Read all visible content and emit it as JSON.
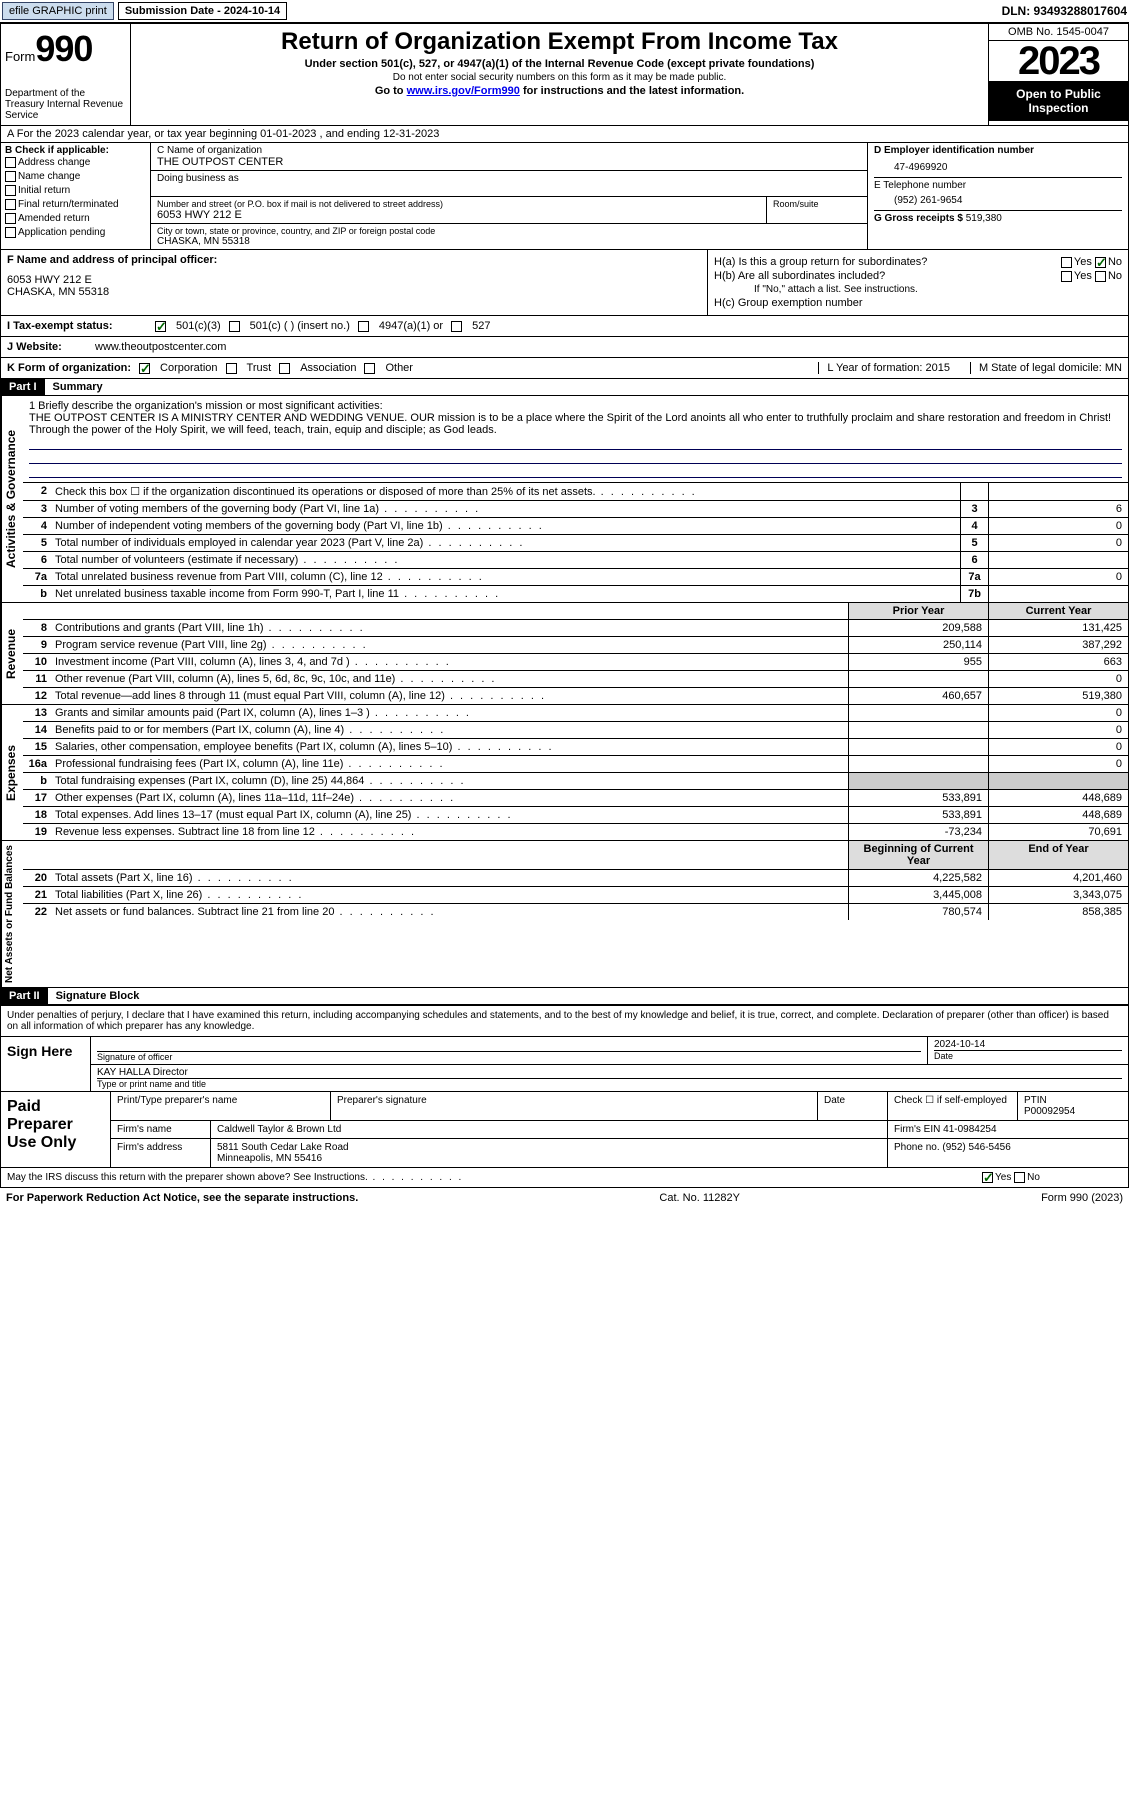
{
  "topbar": {
    "efile": "efile GRAPHIC print",
    "subdate_lbl": "Submission Date - 2024-10-14",
    "dln": "DLN: 93493288017604"
  },
  "header": {
    "form": "Form",
    "num": "990",
    "dept": "Department of the Treasury Internal Revenue Service",
    "title": "Return of Organization Exempt From Income Tax",
    "sub1": "Under section 501(c), 527, or 4947(a)(1) of the Internal Revenue Code (except private foundations)",
    "sub2": "Do not enter social security numbers on this form as it may be made public.",
    "sub3_pre": "Go to ",
    "sub3_link": "www.irs.gov/Form990",
    "sub3_post": " for instructions and the latest information.",
    "omb": "OMB No. 1545-0047",
    "year": "2023",
    "opi": "Open to Public Inspection"
  },
  "row_a": "A For the 2023 calendar year, or tax year beginning 01-01-2023   , and ending 12-31-2023",
  "box_b": {
    "hdr": "B Check if applicable:",
    "items": [
      "Address change",
      "Name change",
      "Initial return",
      "Final return/terminated",
      "Amended return",
      "Application pending"
    ]
  },
  "box_c": {
    "name_lbl": "C Name of organization",
    "name": "THE OUTPOST CENTER",
    "dba_lbl": "Doing business as",
    "addr_lbl": "Number and street (or P.O. box if mail is not delivered to street address)",
    "room_lbl": "Room/suite",
    "addr": "6053 HWY 212 E",
    "city_lbl": "City or town, state or province, country, and ZIP or foreign postal code",
    "city": "CHASKA, MN  55318"
  },
  "box_d": {
    "ein_lbl": "D Employer identification number",
    "ein": "47-4969920",
    "tel_lbl": "E Telephone number",
    "tel": "(952) 261-9654",
    "gross_lbl": "G Gross receipts $",
    "gross": "519,380"
  },
  "box_f": {
    "lbl": "F Name and address of principal officer:",
    "addr1": "6053 HWY 212 E",
    "addr2": "CHASKA, MN  55318"
  },
  "box_h": {
    "ha": "H(a)  Is this a group return for subordinates?",
    "hb": "H(b)  Are all subordinates included?",
    "hb_note": "If \"No,\" attach a list. See instructions.",
    "hc": "H(c)  Group exemption number",
    "yes": "Yes",
    "no": "No"
  },
  "row_i": {
    "lbl": "I   Tax-exempt status:",
    "o1": "501(c)(3)",
    "o2": "501(c) (   ) (insert no.)",
    "o3": "4947(a)(1) or",
    "o4": "527"
  },
  "row_j": {
    "lbl": "J   Website:",
    "val": "www.theoutpostcenter.com"
  },
  "row_k": {
    "lbl": "K Form of organization:",
    "o1": "Corporation",
    "o2": "Trust",
    "o3": "Association",
    "o4": "Other",
    "l": "L Year of formation: 2015",
    "m": "M State of legal domicile: MN"
  },
  "part1": {
    "hdr": "Part I",
    "title": "Summary"
  },
  "mission": {
    "lbl": "1   Briefly describe the organization's mission or most significant activities:",
    "text": "THE OUTPOST CENTER IS A MINISTRY CENTER AND WEDDING VENUE. OUR mission is to be a place where the Spirit of the Lord anoints all who enter to truthfully proclaim and share restoration and freedom in Christ! Through the power of the Holy Spirit, we will feed, teach, train, equip and disciple; as God leads."
  },
  "lines_gov": [
    {
      "n": "2",
      "lbl": "Check this box ☐ if the organization discontinued its operations or disposed of more than 25% of its net assets.",
      "box": "",
      "val": ""
    },
    {
      "n": "3",
      "lbl": "Number of voting members of the governing body (Part VI, line 1a)",
      "box": "3",
      "val": "6"
    },
    {
      "n": "4",
      "lbl": "Number of independent voting members of the governing body (Part VI, line 1b)",
      "box": "4",
      "val": "0"
    },
    {
      "n": "5",
      "lbl": "Total number of individuals employed in calendar year 2023 (Part V, line 2a)",
      "box": "5",
      "val": "0"
    },
    {
      "n": "6",
      "lbl": "Total number of volunteers (estimate if necessary)",
      "box": "6",
      "val": ""
    },
    {
      "n": "7a",
      "lbl": "Total unrelated business revenue from Part VIII, column (C), line 12",
      "box": "7a",
      "val": "0"
    },
    {
      "n": "b",
      "lbl": "Net unrelated business taxable income from Form 990-T, Part I, line 11",
      "box": "7b",
      "val": ""
    }
  ],
  "col_hdr": {
    "prior": "Prior Year",
    "current": "Current Year"
  },
  "lines_rev": [
    {
      "n": "8",
      "lbl": "Contributions and grants (Part VIII, line 1h)",
      "p": "209,588",
      "c": "131,425"
    },
    {
      "n": "9",
      "lbl": "Program service revenue (Part VIII, line 2g)",
      "p": "250,114",
      "c": "387,292"
    },
    {
      "n": "10",
      "lbl": "Investment income (Part VIII, column (A), lines 3, 4, and 7d )",
      "p": "955",
      "c": "663"
    },
    {
      "n": "11",
      "lbl": "Other revenue (Part VIII, column (A), lines 5, 6d, 8c, 9c, 10c, and 11e)",
      "p": "",
      "c": "0"
    },
    {
      "n": "12",
      "lbl": "Total revenue—add lines 8 through 11 (must equal Part VIII, column (A), line 12)",
      "p": "460,657",
      "c": "519,380"
    }
  ],
  "lines_exp": [
    {
      "n": "13",
      "lbl": "Grants and similar amounts paid (Part IX, column (A), lines 1–3 )",
      "p": "",
      "c": "0"
    },
    {
      "n": "14",
      "lbl": "Benefits paid to or for members (Part IX, column (A), line 4)",
      "p": "",
      "c": "0"
    },
    {
      "n": "15",
      "lbl": "Salaries, other compensation, employee benefits (Part IX, column (A), lines 5–10)",
      "p": "",
      "c": "0"
    },
    {
      "n": "16a",
      "lbl": "Professional fundraising fees (Part IX, column (A), line 11e)",
      "p": "",
      "c": "0"
    },
    {
      "n": "b",
      "lbl": "Total fundraising expenses (Part IX, column (D), line 25) 44,864",
      "p": "shade",
      "c": "shade"
    },
    {
      "n": "17",
      "lbl": "Other expenses (Part IX, column (A), lines 11a–11d, 11f–24e)",
      "p": "533,891",
      "c": "448,689"
    },
    {
      "n": "18",
      "lbl": "Total expenses. Add lines 13–17 (must equal Part IX, column (A), line 25)",
      "p": "533,891",
      "c": "448,689"
    },
    {
      "n": "19",
      "lbl": "Revenue less expenses. Subtract line 18 from line 12",
      "p": "-73,234",
      "c": "70,691"
    }
  ],
  "col_hdr2": {
    "beg": "Beginning of Current Year",
    "end": "End of Year"
  },
  "lines_net": [
    {
      "n": "20",
      "lbl": "Total assets (Part X, line 16)",
      "p": "4,225,582",
      "c": "4,201,460"
    },
    {
      "n": "21",
      "lbl": "Total liabilities (Part X, line 26)",
      "p": "3,445,008",
      "c": "3,343,075"
    },
    {
      "n": "22",
      "lbl": "Net assets or fund balances. Subtract line 21 from line 20",
      "p": "780,574",
      "c": "858,385"
    }
  ],
  "vtabs": {
    "gov": "Activities & Governance",
    "rev": "Revenue",
    "exp": "Expenses",
    "net": "Net Assets or Fund Balances"
  },
  "part2": {
    "hdr": "Part II",
    "title": "Signature Block"
  },
  "sig": {
    "perjury": "Under penalties of perjury, I declare that I have examined this return, including accompanying schedules and statements, and to the best of my knowledge and belief, it is true, correct, and complete. Declaration of preparer (other than officer) is based on all information of which preparer has any knowledge.",
    "sign_here": "Sign Here",
    "sig_officer": "Signature of officer",
    "date": "2024-10-14",
    "date_lbl": "Date",
    "name_title": "KAY HALLA  Director",
    "name_title_lbl": "Type or print name and title"
  },
  "paid": {
    "hdr": "Paid Preparer Use Only",
    "prep_name_lbl": "Print/Type preparer's name",
    "prep_sig_lbl": "Preparer's signature",
    "date_lbl": "Date",
    "check_lbl": "Check ☐ if self-employed",
    "ptin_lbl": "PTIN",
    "ptin": "P00092954",
    "firm_name_lbl": "Firm's name",
    "firm_name": "Caldwell Taylor & Brown Ltd",
    "firm_ein_lbl": "Firm's EIN",
    "firm_ein": "41-0984254",
    "firm_addr_lbl": "Firm's address",
    "firm_addr": "5811 South Cedar Lake Road",
    "firm_city": "Minneapolis, MN  55416",
    "phone_lbl": "Phone no.",
    "phone": "(952) 546-5456"
  },
  "discuss": {
    "lbl": "May the IRS discuss this return with the preparer shown above? See Instructions.",
    "yes": "Yes",
    "no": "No"
  },
  "footer": {
    "l": "For Paperwork Reduction Act Notice, see the separate instructions.",
    "m": "Cat. No. 11282Y",
    "r": "Form 990 (2023)"
  }
}
